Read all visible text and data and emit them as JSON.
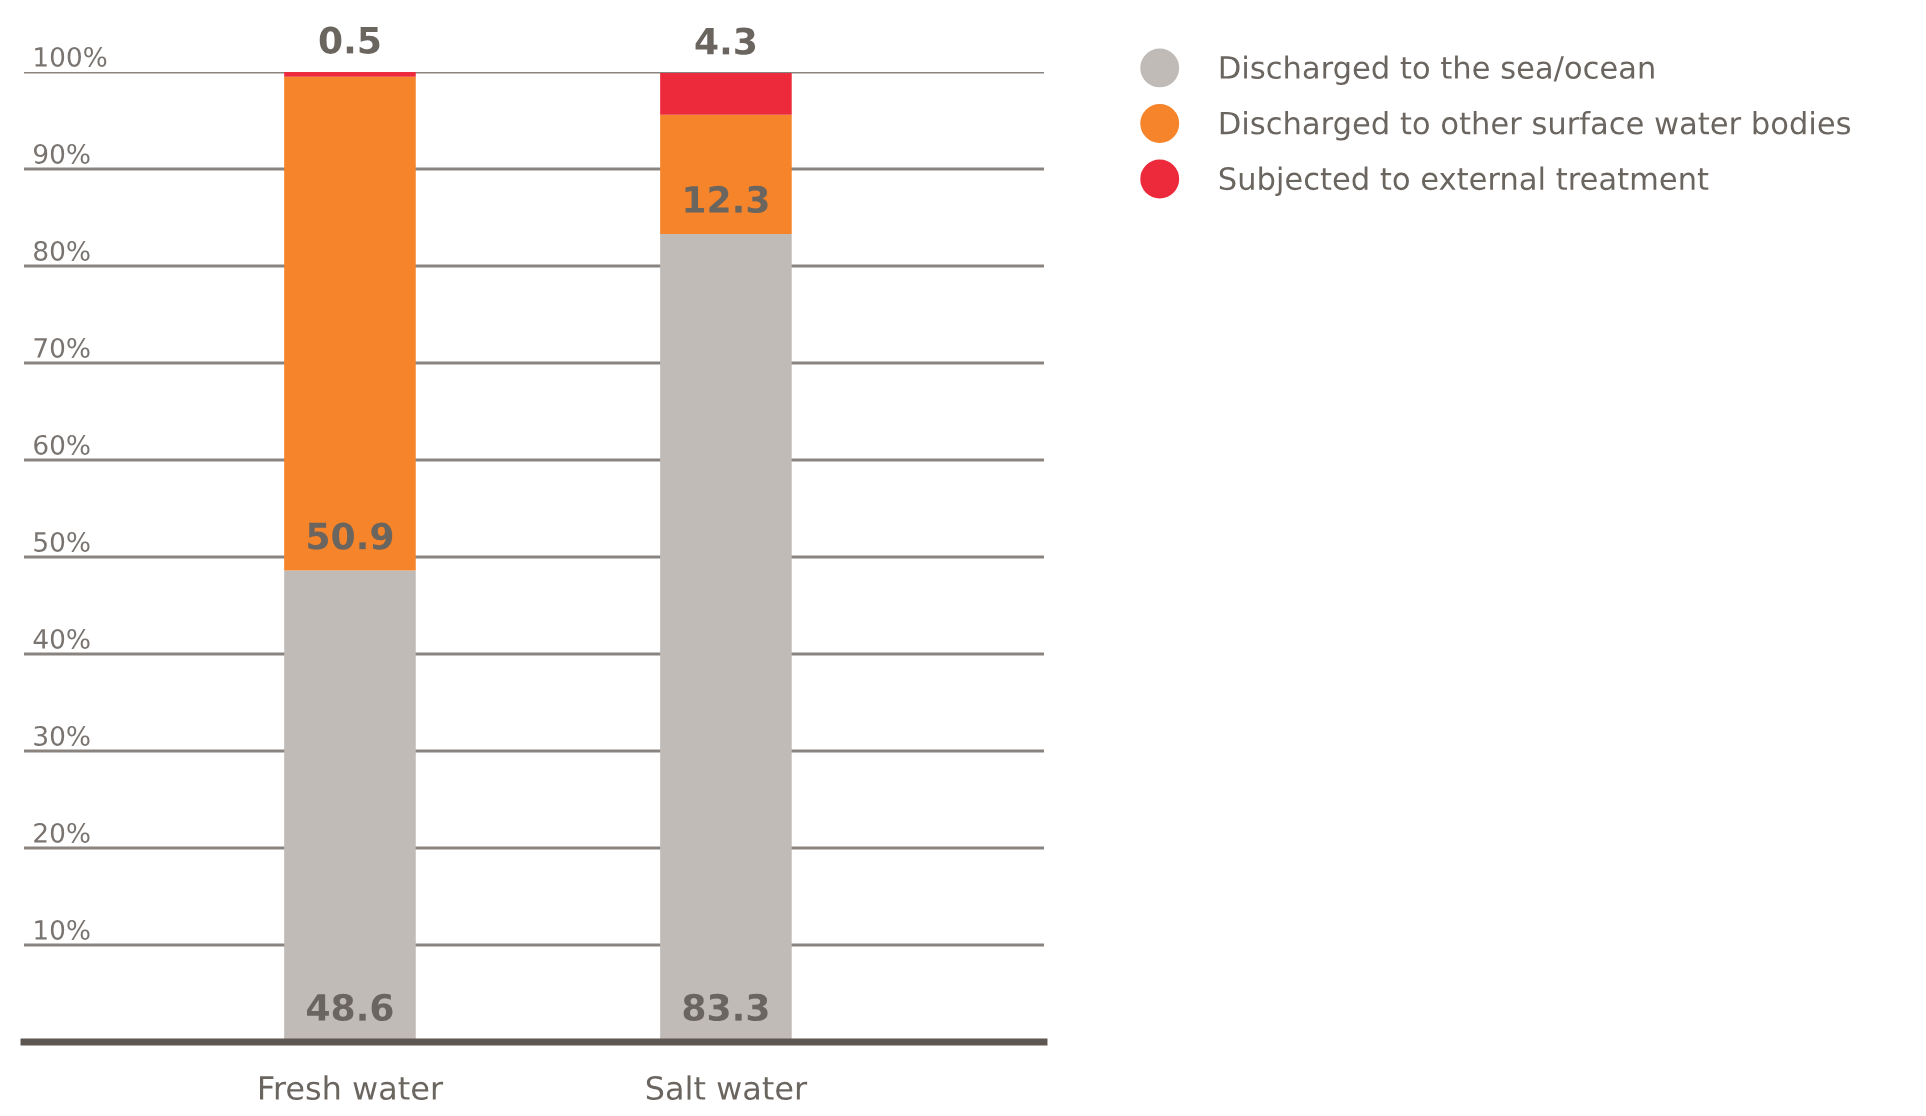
{
  "chart_data": {
    "type": "bar",
    "stacked": true,
    "categories": [
      "Fresh water",
      "Salt water"
    ],
    "series": [
      {
        "name": "Discharged to the sea/ocean",
        "color": "#c0bbb7",
        "values": [
          48.6,
          83.3
        ]
      },
      {
        "name": "Discharged to other surface water bodies",
        "color": "#f5842b",
        "values": [
          50.9,
          12.3
        ]
      },
      {
        "name": "Subjected to external treatment",
        "color": "#ec2a3b",
        "values": [
          0.5,
          4.3
        ]
      }
    ],
    "ylim": [
      0,
      100
    ],
    "yticks": [
      {
        "value": 10,
        "label": "10%"
      },
      {
        "value": 20,
        "label": "20%"
      },
      {
        "value": 30,
        "label": "30%"
      },
      {
        "value": 40,
        "label": "40%"
      },
      {
        "value": 50,
        "label": "50%"
      },
      {
        "value": 60,
        "label": "60%"
      },
      {
        "value": 70,
        "label": "70%"
      },
      {
        "value": 80,
        "label": "80%"
      },
      {
        "value": 90,
        "label": "90%"
      },
      {
        "value": 100,
        "label": "100%"
      }
    ],
    "grid": "y",
    "legend": "top right",
    "data_labels": true
  }
}
